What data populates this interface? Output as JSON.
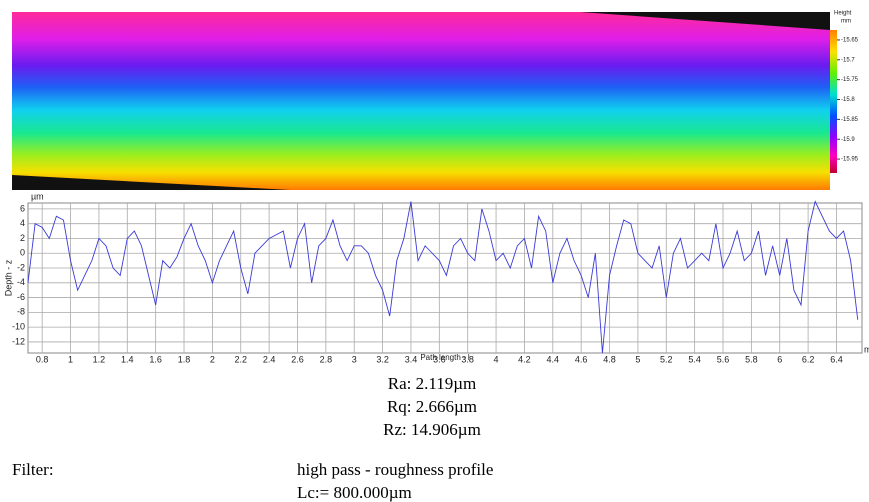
{
  "chart_data": [
    {
      "type": "heatmap",
      "colorbar_title": "Height",
      "colorbar_unit": "mm",
      "clim": [
        -15.625,
        -15.985
      ],
      "colorbar_ticks": [
        -15.65,
        -15.7,
        -15.75,
        -15.8,
        -15.85,
        -15.9,
        -15.95
      ]
    },
    {
      "type": "line",
      "y_unit": "µm",
      "ylabel": "Depth - z",
      "xlabel": "Path length - l",
      "x_unit": "m",
      "color": "#3a3ad8",
      "grid": true,
      "xlim": [
        0.7,
        6.58
      ],
      "ylim": [
        -13.5,
        6.8
      ],
      "xticks": [
        0.8,
        1,
        1.2,
        1.4,
        1.6,
        1.8,
        2,
        2.2,
        2.4,
        2.6,
        2.8,
        3,
        3.2,
        3.4,
        3.6,
        3.8,
        4,
        4.2,
        4.4,
        4.6,
        4.8,
        5,
        5.2,
        5.4,
        5.6,
        5.8,
        6,
        6.2,
        6.4
      ],
      "yticks": [
        6,
        4,
        2,
        0,
        -2,
        -4,
        -6,
        -8,
        -10,
        -12
      ],
      "x": [
        0.7,
        0.75,
        0.8,
        0.85,
        0.9,
        0.95,
        1.0,
        1.05,
        1.1,
        1.15,
        1.2,
        1.25,
        1.3,
        1.35,
        1.4,
        1.45,
        1.5,
        1.55,
        1.6,
        1.65,
        1.7,
        1.75,
        1.8,
        1.85,
        1.9,
        1.95,
        2.0,
        2.05,
        2.1,
        2.15,
        2.2,
        2.25,
        2.3,
        2.35,
        2.4,
        2.45,
        2.5,
        2.55,
        2.6,
        2.65,
        2.7,
        2.75,
        2.8,
        2.85,
        2.9,
        2.95,
        3.0,
        3.05,
        3.1,
        3.15,
        3.2,
        3.25,
        3.3,
        3.35,
        3.4,
        3.45,
        3.5,
        3.55,
        3.6,
        3.65,
        3.7,
        3.75,
        3.8,
        3.85,
        3.9,
        3.95,
        4.0,
        4.05,
        4.1,
        4.15,
        4.2,
        4.25,
        4.3,
        4.35,
        4.4,
        4.45,
        4.5,
        4.55,
        4.6,
        4.65,
        4.7,
        4.75,
        4.8,
        4.85,
        4.9,
        4.95,
        5.0,
        5.05,
        5.1,
        5.15,
        5.2,
        5.25,
        5.3,
        5.35,
        5.4,
        5.45,
        5.5,
        5.55,
        5.6,
        5.65,
        5.7,
        5.75,
        5.8,
        5.85,
        5.9,
        5.95,
        6.0,
        6.05,
        6.1,
        6.15,
        6.2,
        6.25,
        6.3,
        6.35,
        6.4,
        6.45,
        6.5,
        6.55
      ],
      "values": [
        -4,
        4,
        3.5,
        2,
        5,
        4.5,
        -1,
        -5,
        -3,
        -1,
        2,
        1,
        -2,
        -3,
        2,
        3,
        1,
        -3,
        -7,
        -1,
        -2,
        -0.5,
        2,
        4,
        1,
        -1,
        -4,
        -1,
        1,
        3,
        -2,
        -5.5,
        0,
        1,
        2,
        2.5,
        3,
        -2,
        2,
        4,
        -4,
        1,
        2,
        4.5,
        1,
        -1,
        1,
        1,
        0,
        -3,
        -5,
        -8.5,
        -1,
        2,
        7,
        -1,
        1,
        0,
        -1,
        -3,
        1,
        2,
        0,
        -1,
        6,
        3,
        -1,
        0,
        -2,
        1,
        2,
        -2,
        5,
        3,
        -4,
        0,
        2,
        -1,
        -3,
        -6,
        0,
        -13.5,
        -3,
        1,
        4.5,
        4,
        0,
        -1,
        -2,
        1,
        -6,
        0,
        2,
        -2,
        -1,
        0,
        -1,
        4,
        -2,
        0,
        3,
        -1,
        0,
        3,
        -3,
        1,
        -3,
        2,
        -5,
        -7,
        3,
        7,
        5,
        3,
        2,
        3,
        -1,
        -9
      ]
    }
  ],
  "results": [
    "Ra: 2.119µm",
    "Rq: 2.666µm",
    "Rz: 14.906µm"
  ],
  "filter": {
    "label": "Filter:",
    "value": "high pass - roughness profile",
    "cutoff": "Lc:= 800.000µm"
  }
}
